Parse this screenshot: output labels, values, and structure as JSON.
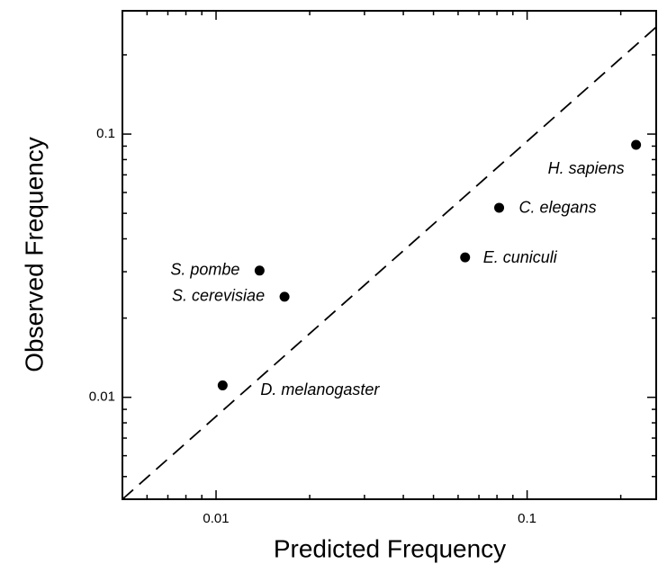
{
  "chart_data": {
    "type": "scatter",
    "x_label": "Predicted Frequency",
    "y_label": "Observed Frequency",
    "xscale": "log",
    "yscale": "log",
    "xlim": [
      0.005,
      0.26
    ],
    "ylim": [
      0.0041,
      0.294
    ],
    "xticks": [
      0.01,
      0.1
    ],
    "yticks": [
      0.01,
      0.1
    ],
    "xminor_ticks": [
      0.006,
      0.007,
      0.008,
      0.009,
      0.02,
      0.03,
      0.04,
      0.05,
      0.06,
      0.07,
      0.08,
      0.09,
      0.2
    ],
    "yminor_ticks": [
      0.005,
      0.006,
      0.007,
      0.008,
      0.009,
      0.02,
      0.03,
      0.04,
      0.05,
      0.06,
      0.07,
      0.08,
      0.09,
      0.2
    ],
    "color": "#000000",
    "points": {
      "labels": [
        "D. melanogaster",
        "S. pombe",
        "S. cerevisiae",
        "E. cuniculi",
        "C. elegans",
        "H. sapiens"
      ],
      "x": [
        0.0105,
        0.0138,
        0.0166,
        0.0632,
        0.0813,
        0.224
      ],
      "y": [
        0.0111,
        0.0303,
        0.0241,
        0.034,
        0.0525,
        0.091
      ]
    },
    "reference_line": {
      "x": [
        0.005,
        0.26
      ],
      "y": [
        0.0041,
        0.255
      ]
    }
  }
}
